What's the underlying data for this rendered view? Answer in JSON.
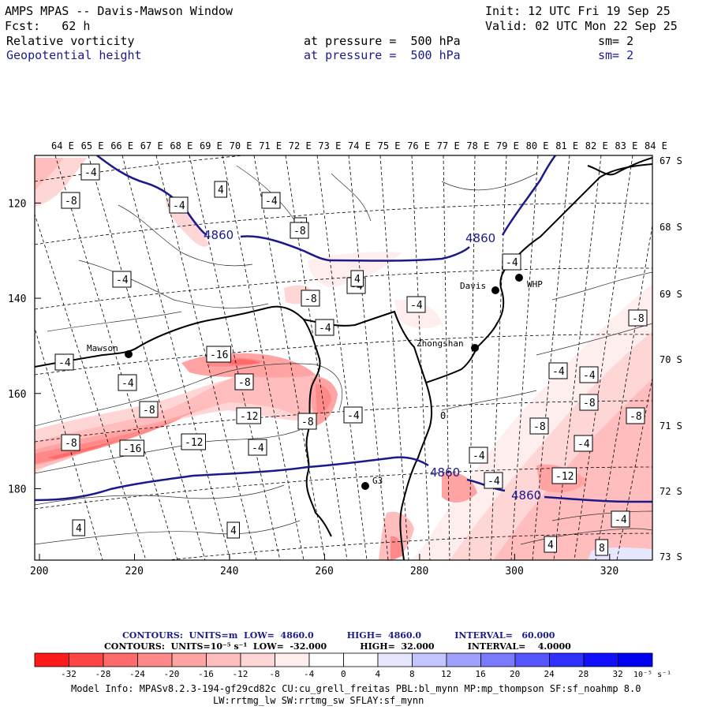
{
  "header": {
    "title": "AMPS MPAS -- Davis-Mawson Window",
    "init": "Init: 12 UTC Fri 19 Sep 25",
    "forecast": "Fcst:   62 h",
    "valid": "Valid: 02 UTC Mon 22 Sep 25",
    "field1": {
      "name": "Relative vorticity",
      "level": "at pressure =  500 hPa",
      "sm": "sm= 2"
    },
    "field2": {
      "name": "Geopotential height",
      "level": "at pressure =  500 hPa",
      "sm": "sm= 2"
    }
  },
  "map": {
    "top_longitudes": [
      "64 E",
      "65 E",
      "66 E",
      "67 E",
      "68 E",
      "69 E",
      "70 E",
      "71 E",
      "72 E",
      "73 E",
      "74 E",
      "75 E",
      "76 E",
      "77 E",
      "78 E",
      "79 E",
      "80 E",
      "81 E",
      "82 E",
      "83 E",
      "84 E"
    ],
    "right_latitudes": [
      "67 S",
      "68 S",
      "69 S",
      "70 S",
      "71 S",
      "72 S",
      "73 S"
    ],
    "left_y_ticks": [
      "120",
      "140",
      "160",
      "180"
    ],
    "bottom_x_ticks": [
      "200",
      "220",
      "240",
      "260",
      "280",
      "300",
      "320"
    ],
    "stations": [
      {
        "name": "Mawson"
      },
      {
        "name": "Davis"
      },
      {
        "name": "WHP"
      },
      {
        "name": "Zhongshan"
      },
      {
        "name": "G3"
      }
    ],
    "height_labels": [
      "4860",
      "4860",
      "4860",
      "4860"
    ],
    "vorticity_labels": [
      "-4",
      "-8",
      "-4",
      "4",
      "-4",
      "4",
      "-4",
      "-4",
      "-8",
      "-4",
      "-4",
      "-4",
      "-16",
      "-8",
      "-4",
      "-8",
      "-12",
      "-8",
      "-4",
      "-12",
      "-16",
      "-8",
      "-4",
      "-4",
      "0",
      "-4",
      "-4",
      "-8",
      "-8",
      "-8",
      "-4",
      "-8",
      "-12",
      "-4",
      "-4",
      "4",
      "4",
      "-4",
      "8",
      "4",
      "-8",
      "4"
    ]
  },
  "contours_info": {
    "line1": "CONTOURS:  UNITS=m  LOW=  4860.0           HIGH=  4860.0           INTERVAL=   60.000",
    "line2": "CONTOURS:  UNITS=10⁻⁵ s⁻¹  LOW=  -32.000           HIGH=  32.000           INTERVAL=    4.0000"
  },
  "colorbar": {
    "colors": [
      "#ff1a1a",
      "#ff4545",
      "#ff6a6a",
      "#ff8888",
      "#ffa3a3",
      "#ffbdbd",
      "#ffd6d6",
      "#ffeeee",
      "#ffffff",
      "#ffffff",
      "#e6e6ff",
      "#c4c4ff",
      "#a0a0ff",
      "#7a7aff",
      "#5555ff",
      "#2f2fff",
      "#1010ff",
      "#0000f0"
    ],
    "labels": [
      "-32",
      "-28",
      "-24",
      "-20",
      "-16",
      "-12",
      "-8",
      "-4",
      "0",
      "4",
      "8",
      "12",
      "16",
      "20",
      "24",
      "28",
      "32"
    ],
    "units": "10⁻⁵ s⁻¹"
  },
  "model_info": {
    "line1": "Model Info: MPASv8.2.3-194-gf29cd82c CU:cu_grell_freitas PBL:bl_mynn MP:mp_thompson SF:sf_noahmp 8.0",
    "line2": "LW:rrtmg_lw SW:rrtmg_sw SFLAY:sf_mynn"
  },
  "colors": {
    "height_contour": "#1a1a8c",
    "coast": "#000000"
  }
}
